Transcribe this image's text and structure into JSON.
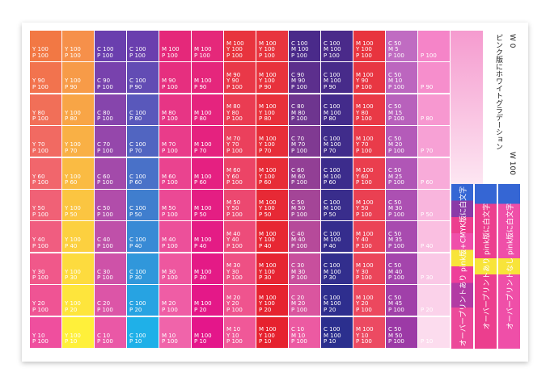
{
  "grid": {
    "rows": [
      [
        [
          "Y 100",
          "P 100"
        ],
        [
          "Y 100",
          "P 100"
        ],
        [
          "C 100",
          "P 100"
        ],
        [
          "C 100",
          "P 100"
        ],
        [
          "M 100",
          "P 100"
        ],
        [
          "M 100",
          "P 100"
        ],
        [
          "M 100",
          "Y 100",
          "P 100"
        ],
        [
          "M 100",
          "Y 100",
          "P 100"
        ],
        [
          "C 100",
          "M 100",
          "P 100"
        ],
        [
          "C 100",
          "M 100",
          "P 100"
        ],
        [
          "M 100",
          "Y 100",
          "P 100"
        ],
        [
          "C 50",
          "M 5",
          "P 100"
        ],
        [
          "P 100"
        ]
      ],
      [
        [
          "Y 90",
          "P 100"
        ],
        [
          "Y 100",
          "P 90"
        ],
        [
          "C 90",
          "P 100"
        ],
        [
          "C 100",
          "P 90"
        ],
        [
          "M 90",
          "P 100"
        ],
        [
          "M 100",
          "P 90"
        ],
        [
          "M 90",
          "Y 90",
          "P 100"
        ],
        [
          "M 100",
          "Y 100",
          "P 90"
        ],
        [
          "C 90",
          "M 90",
          "P 100"
        ],
        [
          "C 100",
          "M 100",
          "P 90"
        ],
        [
          "M 100",
          "Y 90",
          "P 100"
        ],
        [
          "C 50",
          "M 10",
          "P 100"
        ],
        [
          "P 90"
        ]
      ],
      [
        [
          "Y 80",
          "P 100"
        ],
        [
          "Y 100",
          "P 80"
        ],
        [
          "C 80",
          "P 100"
        ],
        [
          "C 100",
          "P 80"
        ],
        [
          "M 80",
          "P 100"
        ],
        [
          "M 100",
          "P 80"
        ],
        [
          "M 80",
          "Y 80",
          "P 100"
        ],
        [
          "M 100",
          "Y 100",
          "P 80"
        ],
        [
          "C 80",
          "M 80",
          "P 100"
        ],
        [
          "C 100",
          "M 100",
          "P 80"
        ],
        [
          "M 100",
          "Y 80",
          "P 100"
        ],
        [
          "C 50",
          "M 15",
          "P 100"
        ],
        [
          "P 80"
        ]
      ],
      [
        [
          "Y 70",
          "P 100"
        ],
        [
          "Y 100",
          "P 70"
        ],
        [
          "C 70",
          "P 100"
        ],
        [
          "C 100",
          "P 70"
        ],
        [
          "M 70",
          "P 100"
        ],
        [
          "M 100",
          "P 70"
        ],
        [
          "M 70",
          "Y 70",
          "P 100"
        ],
        [
          "M 100",
          "Y 100",
          "P 70"
        ],
        [
          "C 70",
          "M 70",
          "P 100"
        ],
        [
          "C 100",
          "M 100",
          "P 70"
        ],
        [
          "M 100",
          "Y 70",
          "P 100"
        ],
        [
          "C 50",
          "M 20",
          "P 100"
        ],
        [
          "P 70"
        ]
      ],
      [
        [
          "Y 60",
          "P 100"
        ],
        [
          "Y 100",
          "P 60"
        ],
        [
          "C 60",
          "P 100"
        ],
        [
          "C 100",
          "P 60"
        ],
        [
          "M 60",
          "P 100"
        ],
        [
          "M 100",
          "P 60"
        ],
        [
          "M 60",
          "Y 60",
          "P 100"
        ],
        [
          "M 100",
          "Y 100",
          "P 60"
        ],
        [
          "C 60",
          "M 60",
          "P 100"
        ],
        [
          "C 100",
          "M 100",
          "P 60"
        ],
        [
          "M 100",
          "Y 60",
          "P 100"
        ],
        [
          "C 50",
          "M 25",
          "P 100"
        ],
        [
          "P 60"
        ]
      ],
      [
        [
          "Y 50",
          "P 100"
        ],
        [
          "Y 100",
          "P 50"
        ],
        [
          "C 50",
          "P 100"
        ],
        [
          "C 100",
          "P 50"
        ],
        [
          "M 50",
          "P 100"
        ],
        [
          "M 100",
          "P 50"
        ],
        [
          "M 50",
          "Y 50",
          "P 100"
        ],
        [
          "M 100",
          "Y 100",
          "P 50"
        ],
        [
          "C 50",
          "M 50",
          "P 100"
        ],
        [
          "C 100",
          "M 100",
          "P 50"
        ],
        [
          "M 100",
          "Y 50",
          "P 100"
        ],
        [
          "C 50",
          "M 30",
          "P 100"
        ],
        [
          "P 50"
        ]
      ],
      [
        [
          "Y 40",
          "P 100"
        ],
        [
          "Y 100",
          "P 40"
        ],
        [
          "C 40",
          "P 100"
        ],
        [
          "C 100",
          "P 40"
        ],
        [
          "M 40",
          "P 100"
        ],
        [
          "M 100",
          "P 40"
        ],
        [
          "M 40",
          "Y 40",
          "P 100"
        ],
        [
          "M 100",
          "Y 100",
          "P 40"
        ],
        [
          "C 40",
          "M 40",
          "P 100"
        ],
        [
          "C 100",
          "M 100",
          "P 40"
        ],
        [
          "M 100",
          "Y 40",
          "P 100"
        ],
        [
          "C 50",
          "M 35",
          "P 100"
        ],
        [
          "P 40"
        ]
      ],
      [
        [
          "Y 30",
          "P 100"
        ],
        [
          "Y 100",
          "P 30"
        ],
        [
          "C 30",
          "P 100"
        ],
        [
          "C 100",
          "P 30"
        ],
        [
          "M 30",
          "P 100"
        ],
        [
          "M 100",
          "P 30"
        ],
        [
          "M 30",
          "Y 30",
          "P 100"
        ],
        [
          "M 100",
          "Y 100",
          "P 30"
        ],
        [
          "C 30",
          "M 30",
          "P 100"
        ],
        [
          "C 100",
          "M 100",
          "P 30"
        ],
        [
          "M 100",
          "Y 30",
          "P 100"
        ],
        [
          "C 50",
          "M 40",
          "P 100"
        ],
        [
          "P 30"
        ]
      ],
      [
        [
          "Y 20",
          "P 100"
        ],
        [
          "Y 100",
          "P 20"
        ],
        [
          "C 20",
          "P 100"
        ],
        [
          "C 100",
          "P 20"
        ],
        [
          "M 20",
          "P 100"
        ],
        [
          "M 100",
          "P 20"
        ],
        [
          "M 20",
          "Y 20",
          "P 100"
        ],
        [
          "M 100",
          "Y 100",
          "P 20"
        ],
        [
          "C 20",
          "M 20",
          "P 100"
        ],
        [
          "C 100",
          "M 100",
          "P 20"
        ],
        [
          "M 100",
          "Y 20",
          "P 100"
        ],
        [
          "C 50",
          "M 45",
          "P 100"
        ],
        [
          "P 20"
        ]
      ],
      [
        [
          "Y 10",
          "P 100"
        ],
        [
          "Y 100",
          "P 10"
        ],
        [
          "C 10",
          "P 100"
        ],
        [
          "C 100",
          "P 10"
        ],
        [
          "M 10",
          "P 100"
        ],
        [
          "M 100",
          "P 10"
        ],
        [
          "M 10",
          "Y 10",
          "P 100"
        ],
        [
          "M 100",
          "Y 100",
          "P 10"
        ],
        [
          "C 10",
          "M 10",
          "P 100"
        ],
        [
          "C 100",
          "M 100",
          "P 10"
        ],
        [
          "M 100",
          "Y 10",
          "P 100"
        ],
        [
          "C 50",
          "M 50",
          "P 100"
        ],
        [
          "P 10"
        ]
      ]
    ]
  },
  "side": {
    "title": "ピンク版にホワイトグラデーション",
    "top": "W 0",
    "bottom": "W 100"
  },
  "notes": [
    "オーバープリントあり pink版+CMYK版に白文字",
    "オーバープリントあり pink版に白文字",
    "オーバープリントなし pink版に白文字"
  ]
}
